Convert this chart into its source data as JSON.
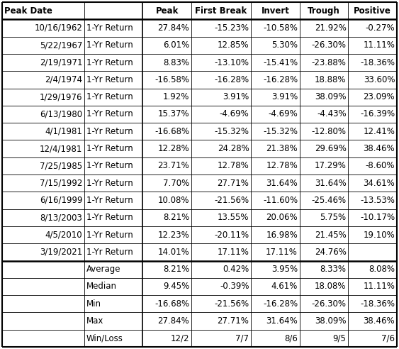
{
  "headers": [
    "Peak Date",
    "Peak",
    "First Break",
    "Invert",
    "Trough",
    "Positive"
  ],
  "rows": [
    [
      "10/16/1962  1-Yr Return",
      "27.84%",
      "-15.23%",
      "-10.58%",
      "21.92%",
      "-0.27%"
    ],
    [
      "5/22/1967  1-Yr Return",
      "6.01%",
      "12.85%",
      "5.30%",
      "-26.30%",
      "11.11%"
    ],
    [
      "2/19/1971  1-Yr Return",
      "8.83%",
      "-13.10%",
      "-15.41%",
      "-23.88%",
      "-18.36%"
    ],
    [
      "2/4/1974  1-Yr Return",
      "-16.58%",
      "-16.28%",
      "-16.28%",
      "18.88%",
      "33.60%"
    ],
    [
      "1/29/1976  1-Yr Return",
      "1.92%",
      "3.91%",
      "3.91%",
      "38.09%",
      "23.09%"
    ],
    [
      "6/13/1980  1-Yr Return",
      "15.37%",
      "-4.69%",
      "-4.69%",
      "-4.43%",
      "-16.39%"
    ],
    [
      "4/1/1981  1-Yr Return",
      "-16.68%",
      "-15.32%",
      "-15.32%",
      "-12.80%",
      "12.41%"
    ],
    [
      "12/4/1981  1-Yr Return",
      "12.28%",
      "24.28%",
      "21.38%",
      "29.69%",
      "38.46%"
    ],
    [
      "7/25/1985  1-Yr Return",
      "23.71%",
      "12.78%",
      "12.78%",
      "17.29%",
      "-8.60%"
    ],
    [
      "7/15/1992  1-Yr Return",
      "7.70%",
      "27.71%",
      "31.64%",
      "31.64%",
      "34.61%"
    ],
    [
      "6/16/1999  1-Yr Return",
      "10.08%",
      "-21.56%",
      "-11.60%",
      "-25.46%",
      "-13.53%"
    ],
    [
      "8/13/2003  1-Yr Return",
      "8.21%",
      "13.55%",
      "20.06%",
      "5.75%",
      "-10.17%"
    ],
    [
      "4/5/2010  1-Yr Return",
      "12.23%",
      "-20.11%",
      "16.98%",
      "21.45%",
      "19.10%"
    ],
    [
      "3/19/2021  1-Yr Return",
      "14.01%",
      "17.11%",
      "17.11%",
      "24.76%",
      ""
    ]
  ],
  "date_col": [
    "10/16/1962",
    "5/22/1967",
    "2/19/1971",
    "2/4/1974",
    "1/29/1976",
    "6/13/1980",
    "4/1/1981",
    "12/4/1981",
    "7/25/1985",
    "7/15/1992",
    "6/16/1999",
    "8/13/2003",
    "4/5/2010",
    "3/19/2021"
  ],
  "label_col": [
    "1-Yr Return",
    "1-Yr Return",
    "1-Yr Return",
    "1-Yr Return",
    "1-Yr Return",
    "1-Yr Return",
    "1-Yr Return",
    "1-Yr Return",
    "1-Yr Return",
    "1-Yr Return",
    "1-Yr Return",
    "1-Yr Return",
    "1-Yr Return",
    "1-Yr Return"
  ],
  "summary_labels": [
    "Average",
    "Median",
    "Min",
    "Max",
    "Win/Loss"
  ],
  "summary_data": [
    [
      "8.21%",
      "0.42%",
      "3.95%",
      "8.33%",
      "8.08%"
    ],
    [
      "9.45%",
      "-0.39%",
      "4.61%",
      "18.08%",
      "11.11%"
    ],
    [
      "-16.68%",
      "-21.56%",
      "-16.28%",
      "-26.30%",
      "-18.36%"
    ],
    [
      "27.84%",
      "27.71%",
      "31.64%",
      "38.09%",
      "38.46%"
    ],
    [
      "12/2",
      "7/7",
      "8/6",
      "9/5",
      "7/6"
    ]
  ],
  "data_cols": [
    [
      "27.84%",
      "6.01%",
      "8.83%",
      "-16.58%",
      "1.92%",
      "15.37%",
      "-16.68%",
      "12.28%",
      "23.71%",
      "7.70%",
      "10.08%",
      "8.21%",
      "12.23%",
      "14.01%"
    ],
    [
      "-15.23%",
      "12.85%",
      "-13.10%",
      "-16.28%",
      "3.91%",
      "-4.69%",
      "-15.32%",
      "24.28%",
      "12.78%",
      "27.71%",
      "-21.56%",
      "13.55%",
      "-20.11%",
      "17.11%"
    ],
    [
      "-10.58%",
      "5.30%",
      "-15.41%",
      "-16.28%",
      "3.91%",
      "-4.69%",
      "-15.32%",
      "21.38%",
      "12.78%",
      "31.64%",
      "-11.60%",
      "20.06%",
      "16.98%",
      "17.11%"
    ],
    [
      "21.92%",
      "-26.30%",
      "-23.88%",
      "18.88%",
      "38.09%",
      "-4.43%",
      "-12.80%",
      "29.69%",
      "17.29%",
      "31.64%",
      "-25.46%",
      "5.75%",
      "21.45%",
      "24.76%"
    ],
    [
      "-0.27%",
      "11.11%",
      "-18.36%",
      "33.60%",
      "23.09%",
      "-16.39%",
      "12.41%",
      "38.46%",
      "-8.60%",
      "34.61%",
      "-13.53%",
      "-10.17%",
      "19.10%",
      ""
    ]
  ],
  "bg_color": "#ffffff",
  "text_color": "#000000",
  "border_color": "#000000",
  "fontsize": 8.5,
  "fig_width": 5.63,
  "fig_height": 4.92,
  "dpi": 100
}
